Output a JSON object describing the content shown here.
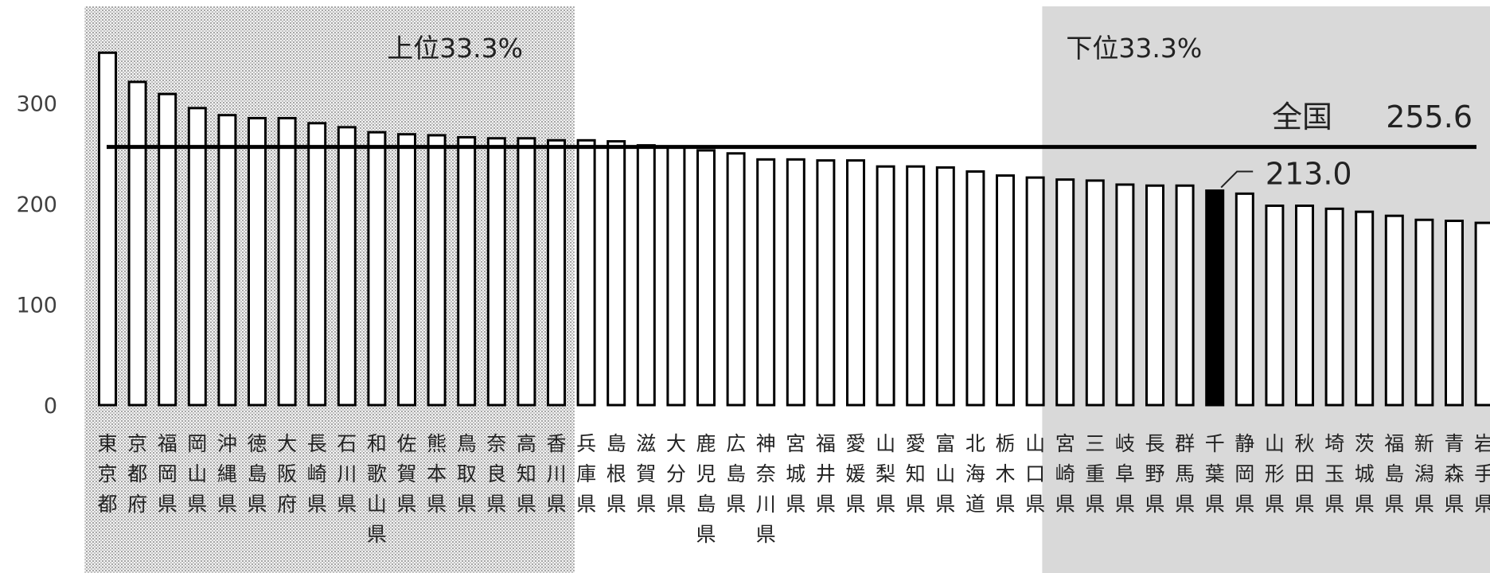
{
  "chart_data": {
    "type": "bar",
    "title": "",
    "xlabel": "",
    "ylabel": "",
    "ylim": [
      0,
      360
    ],
    "yticks": [
      0,
      100,
      200,
      300
    ],
    "grid": false,
    "categories": [
      "東京都",
      "京都府",
      "福岡県",
      "岡山県",
      "沖縄県",
      "徳島県",
      "大阪府",
      "長崎県",
      "石川県",
      "和歌山県",
      "佐賀県",
      "熊本県",
      "鳥取県",
      "奈良県",
      "高知県",
      "香川県",
      "兵庫県",
      "島根県",
      "滋賀県",
      "大分県",
      "鹿児島県",
      "広島県",
      "神奈川県",
      "宮城県",
      "福井県",
      "愛媛県",
      "山梨県",
      "愛知県",
      "富山県",
      "北海道",
      "栃木県",
      "山口県",
      "宮崎県",
      "三重県",
      "岐阜県",
      "長野県",
      "群馬県",
      "千葉県",
      "静岡県",
      "山形県",
      "秋田県",
      "埼玉県",
      "茨城県",
      "福島県",
      "新潟県",
      "青森県",
      "岩手県"
    ],
    "values": [
      350,
      321,
      309,
      295,
      288,
      285,
      285,
      280,
      276,
      271,
      269,
      268,
      266,
      265,
      265,
      263,
      263,
      262,
      258,
      256,
      253,
      250,
      244,
      244,
      243,
      243,
      237,
      237,
      236,
      232,
      228,
      226,
      224,
      223,
      219,
      218,
      218,
      213,
      210,
      198,
      198,
      195,
      192,
      188,
      184,
      183,
      181
    ],
    "highlight": {
      "category": "千葉県",
      "value_label": "213.0",
      "color": "#000000"
    },
    "reference_line": {
      "label": "全国",
      "value": 255.6,
      "value_label": "255.6"
    },
    "bands": [
      {
        "label": "上位33.3%",
        "from_index": 0,
        "to_index": 15,
        "fill": "dotted-grey"
      },
      {
        "label": "下位33.3%",
        "from_index": 32,
        "to_index": 46,
        "fill": "#d9d9d9"
      }
    ],
    "colors": {
      "bar_fill": "#ffffff",
      "bar_stroke": "#000000",
      "line": "#000000"
    }
  }
}
